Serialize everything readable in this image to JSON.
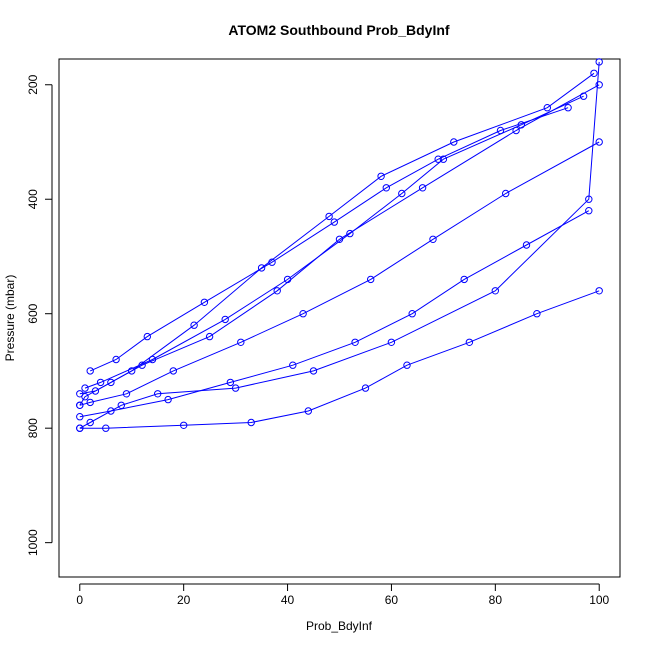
{
  "chart_data": {
    "type": "line",
    "title": "ATOM2 Southbound Prob_BdyInf",
    "xlabel": "Prob_BdyInf",
    "ylabel": "Pressure (mbar)",
    "xlim": [
      -4,
      104
    ],
    "ylim": [
      1060,
      155
    ],
    "y_reversed": true,
    "x_ticks": [
      0,
      20,
      40,
      60,
      80,
      100
    ],
    "y_ticks": [
      200,
      400,
      600,
      800,
      1000
    ],
    "grid": false,
    "legend": "none",
    "series_color": "#0000ff",
    "marker": "open-circle",
    "series": [
      {
        "x": [
          0,
          2,
          8,
          15,
          30,
          45,
          60,
          80,
          98,
          100
        ],
        "y": [
          800,
          790,
          760,
          740,
          730,
          700,
          650,
          560,
          400,
          160
        ]
      },
      {
        "x": [
          0,
          1,
          6,
          12,
          25,
          38,
          50,
          66,
          84,
          100
        ],
        "y": [
          760,
          745,
          720,
          690,
          640,
          560,
          470,
          380,
          280,
          200
        ]
      },
      {
        "x": [
          0,
          3,
          10,
          22,
          35,
          48,
          58,
          72,
          90,
          99
        ],
        "y": [
          740,
          735,
          700,
          620,
          520,
          430,
          360,
          300,
          240,
          180
        ]
      },
      {
        "x": [
          0,
          5,
          20,
          33,
          44,
          55,
          63,
          75,
          88,
          100
        ],
        "y": [
          800,
          800,
          795,
          790,
          770,
          730,
          690,
          650,
          600,
          560
        ]
      },
      {
        "x": [
          1,
          4,
          14,
          28,
          40,
          52,
          62,
          70,
          85,
          97
        ],
        "y": [
          730,
          720,
          680,
          610,
          540,
          460,
          390,
          330,
          270,
          220
        ]
      },
      {
        "x": [
          0,
          2,
          9,
          18,
          31,
          43,
          56,
          68,
          82,
          100
        ],
        "y": [
          760,
          755,
          740,
          700,
          650,
          600,
          540,
          470,
          390,
          300
        ]
      },
      {
        "x": [
          0,
          6,
          17,
          29,
          41,
          53,
          64,
          74,
          86,
          98
        ],
        "y": [
          780,
          770,
          750,
          720,
          690,
          650,
          600,
          540,
          480,
          420
        ]
      },
      {
        "x": [
          2,
          7,
          13,
          24,
          37,
          49,
          59,
          69,
          81,
          94
        ],
        "y": [
          700,
          680,
          640,
          580,
          510,
          440,
          380,
          330,
          280,
          240
        ]
      }
    ]
  }
}
